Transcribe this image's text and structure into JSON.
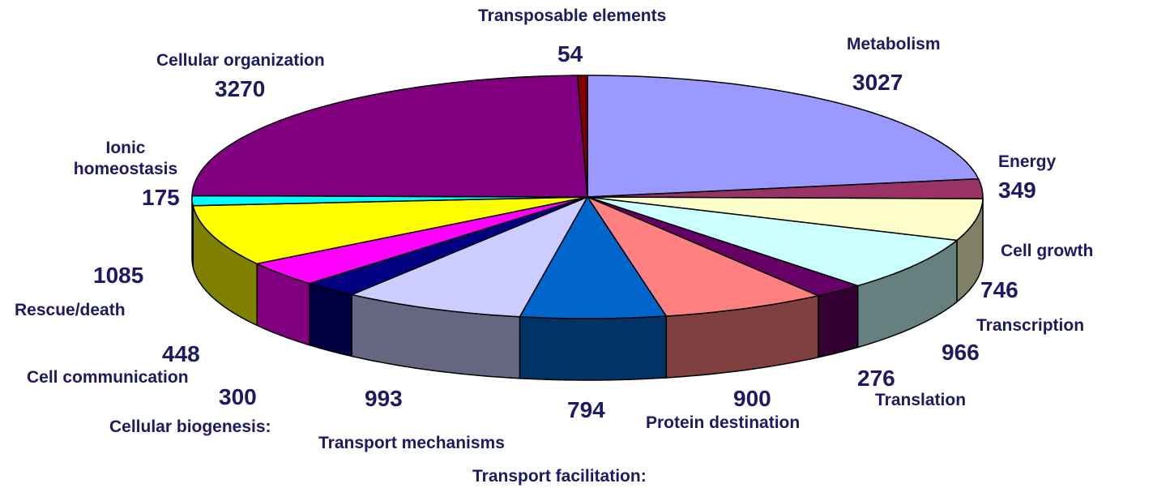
{
  "chart_data": {
    "type": "pie",
    "categories": [
      "Metabolism",
      "Energy",
      "Cell growth",
      "Transcription",
      "Translation",
      "Protein destination",
      "Transport facilitation:",
      "Transport mechanisms",
      "Cellular biogenesis:",
      "Cell communication",
      "Rescue/death",
      "Ionic homeostasis",
      "Cellular organization",
      "Transposable elements"
    ],
    "values": [
      3027,
      349,
      746,
      966,
      276,
      900,
      794,
      993,
      300,
      448,
      1085,
      175,
      3270,
      54
    ],
    "colors": [
      "#9999ff",
      "#993366",
      "#ffffcc",
      "#ccffff",
      "#660066",
      "#ff8080",
      "#0066cc",
      "#ccccff",
      "#000080",
      "#ff00ff",
      "#ffff00",
      "#00ffff",
      "#800080",
      "#800000"
    ]
  }
}
